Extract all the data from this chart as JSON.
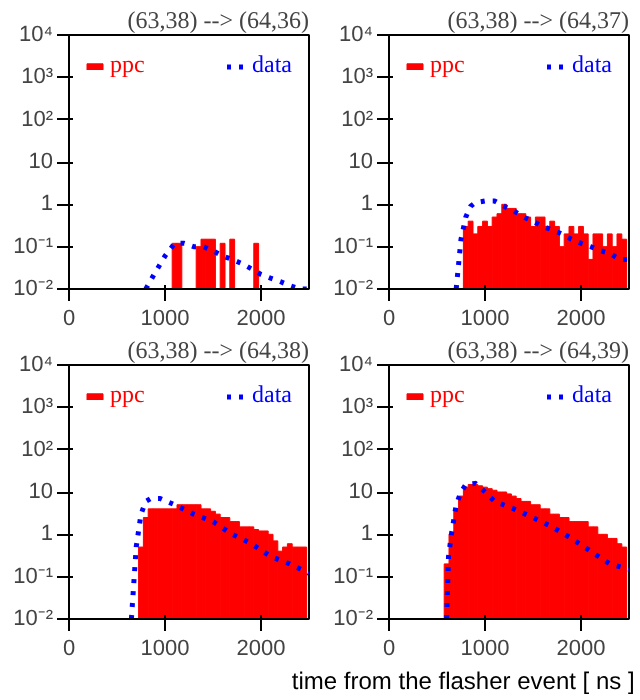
{
  "chart_data": [
    {
      "type": "bar",
      "title": "(63,38) --> (64,36)",
      "xlim": [
        0,
        2500
      ],
      "ylim": [
        0.01,
        10000
      ],
      "log": "y",
      "xticks": [
        0,
        1000,
        2000
      ],
      "yticks": [
        {
          "value": 0.01,
          "label": "10⁻²"
        },
        {
          "value": 0.1,
          "label": "10⁻¹"
        },
        1,
        10,
        {
          "value": 100,
          "label": "10²"
        },
        {
          "value": 1000,
          "label": "10³"
        },
        {
          "value": 10000,
          "label": "10⁴"
        }
      ],
      "legend": "top",
      "grid": false,
      "series": [
        {
          "name": "ppc",
          "color": "#ff0000",
          "x": [
            1100,
            1150,
            1350,
            1400,
            1450,
            1500,
            1600,
            1700,
            1950
          ],
          "values": [
            0.12,
            0.12,
            0.1,
            0.15,
            0.15,
            0.15,
            0.12,
            0.15,
            0.12
          ]
        },
        {
          "name": "data",
          "type": "line",
          "color": "#0000ff",
          "line_style": "dotted",
          "x": [
            800,
            900,
            1000,
            1100,
            1200,
            1300,
            1400,
            1500,
            1600,
            1700,
            1800,
            1900,
            2000,
            2100,
            2200,
            2300,
            2400,
            2500
          ],
          "values": [
            0.01,
            0.025,
            0.06,
            0.12,
            0.12,
            0.1,
            0.1,
            0.08,
            0.06,
            0.05,
            0.04,
            0.03,
            0.022,
            0.018,
            0.015,
            0.012,
            0.01,
            0.01
          ]
        }
      ]
    },
    {
      "type": "bar",
      "title": "(63,38) --> (64,37)",
      "xlim": [
        0,
        2500
      ],
      "ylim": [
        0.01,
        10000
      ],
      "log": "y",
      "xticks": [
        0,
        1000,
        2000
      ],
      "yticks": [
        {
          "value": 0.01,
          "label": "10⁻²"
        },
        {
          "value": 0.1,
          "label": "10⁻¹"
        },
        1,
        10,
        {
          "value": 100,
          "label": "10²"
        },
        {
          "value": 1000,
          "label": "10³"
        },
        {
          "value": 10000,
          "label": "10⁴"
        }
      ],
      "legend": "top",
      "grid": false,
      "series": [
        {
          "name": "ppc",
          "color": "#ff0000",
          "x": [
            800,
            850,
            900,
            950,
            1000,
            1050,
            1100,
            1150,
            1200,
            1250,
            1300,
            1350,
            1400,
            1450,
            1500,
            1550,
            1600,
            1650,
            1700,
            1750,
            1800,
            1850,
            1900,
            1950,
            2000,
            2050,
            2100,
            2150,
            2200,
            2250,
            2300,
            2350,
            2400,
            2450
          ],
          "values": [
            0.3,
            0.4,
            0.2,
            0.3,
            0.4,
            0.3,
            0.5,
            0.6,
            1.0,
            0.8,
            0.8,
            0.6,
            0.6,
            0.5,
            0.3,
            0.5,
            0.5,
            0.3,
            0.4,
            0.3,
            0.1,
            0.2,
            0.3,
            0.2,
            0.3,
            0.2,
            0.05,
            0.2,
            0.2,
            0.1,
            0.2,
            0.1,
            0.2,
            0.15
          ]
        },
        {
          "name": "data",
          "type": "line",
          "color": "#0000ff",
          "line_style": "dotted",
          "x": [
            700,
            750,
            800,
            850,
            900,
            1000,
            1100,
            1200,
            1300,
            1400,
            1500,
            1600,
            1700,
            1800,
            1900,
            2000,
            2100,
            2200,
            2300,
            2400,
            2500
          ],
          "values": [
            0.01,
            0.15,
            0.5,
            0.9,
            1.1,
            1.2,
            1.2,
            0.9,
            0.7,
            0.5,
            0.4,
            0.3,
            0.25,
            0.2,
            0.15,
            0.12,
            0.1,
            0.08,
            0.07,
            0.05,
            0.05
          ]
        }
      ]
    },
    {
      "type": "bar",
      "title": "(63,38) --> (64,38)",
      "xlim": [
        0,
        2500
      ],
      "ylim": [
        0.01,
        10000
      ],
      "log": "y",
      "xticks": [
        0,
        1000,
        2000
      ],
      "yticks": [
        {
          "value": 0.01,
          "label": "10⁻²"
        },
        {
          "value": 0.1,
          "label": "10⁻¹"
        },
        1,
        10,
        {
          "value": 100,
          "label": "10²"
        },
        {
          "value": 1000,
          "label": "10³"
        },
        {
          "value": 10000,
          "label": "10⁴"
        }
      ],
      "legend": "top",
      "grid": false,
      "series": [
        {
          "name": "ppc",
          "color": "#ff0000",
          "x": [
            750,
            800,
            850,
            900,
            950,
            1000,
            1050,
            1100,
            1150,
            1200,
            1250,
            1300,
            1350,
            1400,
            1450,
            1500,
            1550,
            1600,
            1650,
            1700,
            1750,
            1800,
            1850,
            1900,
            1950,
            2000,
            2050,
            2100,
            2150,
            2200,
            2250,
            2300,
            2350,
            2400,
            2450
          ],
          "values": [
            0.5,
            2.5,
            4,
            4,
            4,
            4,
            4,
            4,
            5,
            5,
            5,
            5,
            5,
            4,
            4,
            3.5,
            3,
            2.5,
            2.5,
            2,
            2,
            1.5,
            1.5,
            1.5,
            1.3,
            1.2,
            1.2,
            1,
            0.7,
            0.4,
            0.5,
            0.6,
            0.5,
            0.5,
            0.5
          ]
        },
        {
          "name": "data",
          "type": "line",
          "color": "#0000ff",
          "line_style": "dotted",
          "x": [
            650,
            700,
            750,
            800,
            850,
            950,
            1100,
            1300,
            1500,
            1700,
            1900,
            2100,
            2300,
            2500
          ],
          "values": [
            0.01,
            0.5,
            3,
            6,
            7,
            7,
            5,
            3,
            2,
            1,
            0.6,
            0.3,
            0.2,
            0.12
          ]
        }
      ]
    },
    {
      "type": "bar",
      "title": "(63,38) --> (64,39)",
      "xlabel": "time from the flasher event [ ns ]",
      "xlim": [
        0,
        2500
      ],
      "ylim": [
        0.01,
        10000
      ],
      "log": "y",
      "xticks": [
        0,
        1000,
        2000
      ],
      "yticks": [
        {
          "value": 0.01,
          "label": "10⁻²"
        },
        {
          "value": 0.1,
          "label": "10⁻¹"
        },
        1,
        10,
        {
          "value": 100,
          "label": "10²"
        },
        {
          "value": 1000,
          "label": "10³"
        },
        {
          "value": 10000,
          "label": "10⁴"
        }
      ],
      "legend": "top",
      "grid": false,
      "series": [
        {
          "name": "ppc",
          "color": "#ff0000",
          "x": [
            600,
            650,
            700,
            750,
            800,
            850,
            900,
            950,
            1000,
            1050,
            1100,
            1150,
            1200,
            1250,
            1300,
            1350,
            1400,
            1450,
            1500,
            1550,
            1600,
            1650,
            1700,
            1750,
            1800,
            1850,
            1900,
            1950,
            2000,
            2050,
            2100,
            2150,
            2200,
            2250,
            2300,
            2350,
            2400,
            2450
          ],
          "values": [
            0.2,
            1,
            4,
            8,
            13,
            15,
            15,
            14,
            13,
            12,
            11,
            10,
            10,
            9,
            8,
            7,
            6,
            6,
            5,
            5,
            4,
            4,
            3,
            3,
            2.5,
            2.5,
            2,
            2,
            2,
            2,
            1.5,
            1.5,
            1,
            1,
            0.8,
            0.8,
            0.6,
            0.5
          ]
        },
        {
          "name": "data",
          "type": "line",
          "color": "#0000ff",
          "line_style": "dotted",
          "x": [
            600,
            620,
            650,
            700,
            750,
            800,
            900,
            1000,
            1100,
            1300,
            1500,
            1700,
            1900,
            2100,
            2300,
            2500
          ],
          "values": [
            0.01,
            0.3,
            1,
            5,
            10,
            15,
            16,
            10,
            6,
            4,
            2.5,
            1.5,
            0.8,
            0.4,
            0.2,
            0.15
          ]
        }
      ]
    }
  ]
}
